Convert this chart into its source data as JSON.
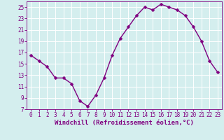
{
  "x": [
    0,
    1,
    2,
    3,
    4,
    5,
    6,
    7,
    8,
    9,
    10,
    11,
    12,
    13,
    14,
    15,
    16,
    17,
    18,
    19,
    20,
    21,
    22,
    23
  ],
  "y": [
    16.5,
    15.5,
    14.5,
    12.5,
    12.5,
    11.5,
    8.5,
    7.5,
    9.5,
    12.5,
    16.5,
    19.5,
    21.5,
    23.5,
    25.0,
    24.5,
    25.5,
    25.0,
    24.5,
    23.5,
    21.5,
    19.0,
    15.5,
    13.5
  ],
  "line_color": "#800080",
  "marker": "D",
  "markersize": 2.5,
  "linewidth": 1.0,
  "xlabel": "Windchill (Refroidissement éolien,°C)",
  "xlabel_fontsize": 6.5,
  "ylim": [
    7,
    26
  ],
  "xlim": [
    -0.5,
    23.5
  ],
  "yticks": [
    7,
    9,
    11,
    13,
    15,
    17,
    19,
    21,
    23,
    25
  ],
  "xticks": [
    0,
    1,
    2,
    3,
    4,
    5,
    6,
    7,
    8,
    9,
    10,
    11,
    12,
    13,
    14,
    15,
    16,
    17,
    18,
    19,
    20,
    21,
    22,
    23
  ],
  "xtick_labels": [
    "0",
    "1",
    "2",
    "3",
    "4",
    "5",
    "6",
    "7",
    "8",
    "9",
    "10",
    "11",
    "12",
    "13",
    "14",
    "15",
    "16",
    "17",
    "18",
    "19",
    "20",
    "21",
    "22",
    "23"
  ],
  "ytick_labels": [
    "7",
    "9",
    "11",
    "13",
    "15",
    "17",
    "19",
    "21",
    "23",
    "25"
  ],
  "bg_color": "#d4eeee",
  "grid_color": "#ffffff",
  "tick_fontsize": 5.5,
  "tick_color": "#800080",
  "label_color": "#800080",
  "spine_color": "#800080"
}
